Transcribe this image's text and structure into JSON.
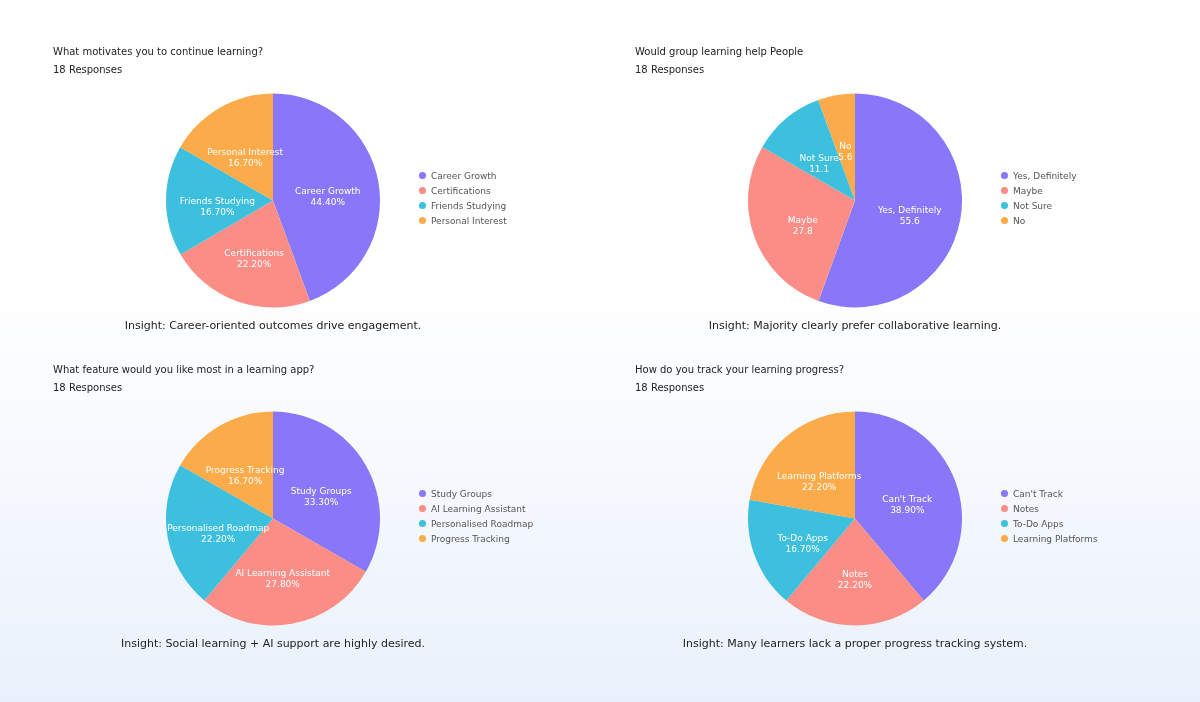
{
  "chart_data": [
    {
      "type": "pie",
      "title": "What motivates you to continue learning?",
      "subtitle": "18 Responses",
      "categories": [
        "Career Growth",
        "Certifications",
        "Friends Studying",
        "Personal Interest"
      ],
      "values": [
        44.4,
        22.2,
        16.7,
        16.7
      ],
      "value_labels": [
        "44.40%",
        "22.20%",
        "16.70%",
        "16.70%"
      ],
      "colors": [
        "#8877f9",
        "#fa8e86",
        "#3dc0de",
        "#fbab4a"
      ],
      "legend": "right",
      "annotations": [
        "Insight: Career-oriented outcomes drive engagement."
      ]
    },
    {
      "type": "pie",
      "title": "Would group learning help People",
      "subtitle": "18 Responses",
      "categories": [
        "Yes, Definitely",
        "Maybe",
        "Not Sure",
        "No"
      ],
      "values": [
        55.6,
        27.8,
        11.1,
        5.6
      ],
      "data_labels": true,
      "colors": [
        "#8877f9",
        "#fa8e86",
        "#3dc0de",
        "#fbab4a"
      ],
      "legend": "right",
      "annotations": [
        "Insight: Majority clearly prefer collaborative learning."
      ]
    },
    {
      "type": "pie",
      "title": "What feature would you like most in a learning app?",
      "subtitle": "18 Responses",
      "categories": [
        "Study Groups",
        "AI Learning Assistant",
        "Personalised Roadmap",
        "Progress Tracking"
      ],
      "values": [
        33.3,
        27.8,
        22.2,
        16.7
      ],
      "value_labels": [
        "33.30%",
        "27.80%",
        "22.20%",
        "16.70%"
      ],
      "colors": [
        "#8877f9",
        "#fa8e86",
        "#3dc0de",
        "#fbab4a"
      ],
      "legend": "right",
      "annotations": [
        "Insight: Social learning + AI support are highly desired."
      ]
    },
    {
      "type": "pie",
      "title": "How do you track your learning progress?",
      "subtitle": "18 Responses",
      "categories": [
        "Can't Track",
        "Notes",
        "To-Do Apps",
        "Learning Platforms"
      ],
      "values": [
        38.9,
        22.2,
        16.7,
        22.2
      ],
      "value_labels": [
        "38.90%",
        "22.20%",
        "16.70%",
        "22.20%"
      ],
      "colors": [
        "#8877f9",
        "#fa8e86",
        "#3dc0de",
        "#fbab4a"
      ],
      "legend": "right",
      "annotations": [
        "Insight: Many learners lack a proper progress tracking system."
      ]
    }
  ]
}
